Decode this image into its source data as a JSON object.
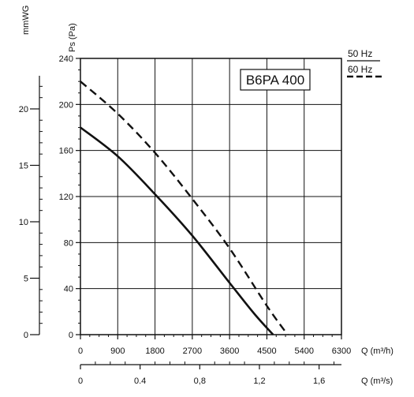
{
  "chart_data": {
    "type": "line",
    "model_label": "B6PA 400",
    "y_primary": {
      "label": "Ps (Pa)",
      "range": [
        0,
        240
      ],
      "ticks": [
        "0",
        "40",
        "80",
        "120",
        "160",
        "200",
        "240"
      ]
    },
    "y_secondary": {
      "label": "mmWG",
      "ticks": [
        "0",
        "5",
        "10",
        "15",
        "20"
      ],
      "tick_values_pa": [
        0,
        49.03,
        98.07,
        147.1,
        196.13
      ]
    },
    "x_primary": {
      "label": "Q (m³/h)",
      "range": [
        0,
        6300
      ],
      "ticks": [
        "0",
        "900",
        "1800",
        "2700",
        "3600",
        "4500",
        "5400",
        "6300"
      ]
    },
    "x_secondary": {
      "label": "Q (m³/s)",
      "ticks": [
        "0",
        "0.4",
        "0,8",
        "1,2",
        "1,6"
      ],
      "tick_values_m3h": [
        0,
        1440,
        2880,
        4320,
        5760
      ]
    },
    "grid": true,
    "legend": {
      "position": "top-right",
      "entries": [
        {
          "label": "50 Hz",
          "style": "solid"
        },
        {
          "label": "60 Hz",
          "style": "dashed"
        }
      ]
    },
    "series": [
      {
        "name": "50 Hz",
        "style": "solid",
        "x": [
          0,
          900,
          1800,
          2700,
          3600,
          4200,
          4650
        ],
        "y": [
          180,
          155,
          122,
          86,
          45,
          18,
          0
        ]
      },
      {
        "name": "60 Hz",
        "style": "dashed",
        "x": [
          0,
          900,
          1800,
          2700,
          3600,
          4500,
          5000
        ],
        "y": [
          220,
          192,
          158,
          118,
          75,
          25,
          0
        ]
      }
    ]
  }
}
